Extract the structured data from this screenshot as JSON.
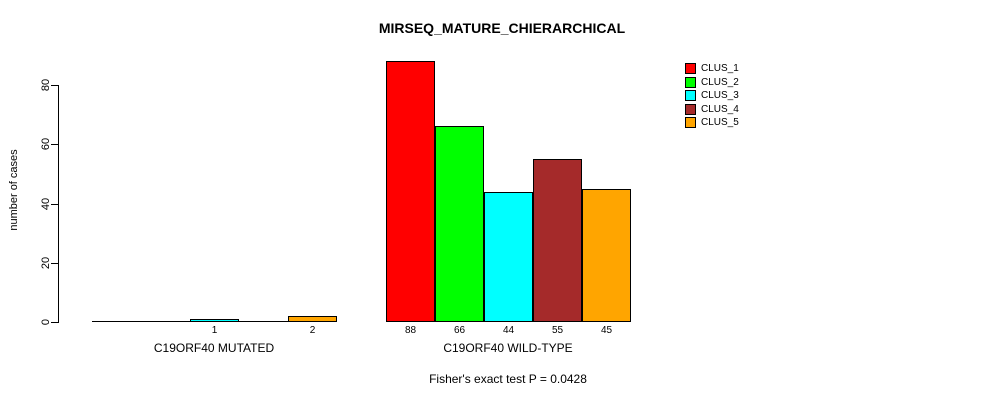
{
  "chart_data": {
    "type": "bar",
    "title": "MIRSEQ_MATURE_CHIERARCHICAL",
    "ylabel": "number of cases",
    "xlabel": "",
    "annotation": "Fisher's exact test P = 0.0428",
    "ylim": [
      0,
      88
    ],
    "yticks": [
      0,
      20,
      40,
      60,
      80
    ],
    "grid": false,
    "legend_position": "top-right",
    "legend": [
      {
        "label": "CLUS_1",
        "color": "#FF0000"
      },
      {
        "label": "CLUS_2",
        "color": "#00FF00"
      },
      {
        "label": "CLUS_3",
        "color": "#00FFFF"
      },
      {
        "label": "CLUS_4",
        "color": "#A52A2A"
      },
      {
        "label": "CLUS_5",
        "color": "#FFA500"
      }
    ],
    "groups": [
      {
        "label": "C19ORF40 MUTATED",
        "values": [
          0,
          0,
          1,
          0,
          2
        ],
        "bar_labels": [
          "",
          "",
          "1",
          "",
          "2"
        ]
      },
      {
        "label": "C19ORF40 WILD-TYPE",
        "values": [
          88,
          66,
          44,
          55,
          45
        ],
        "bar_labels": [
          "88",
          "66",
          "44",
          "55",
          "45"
        ]
      }
    ]
  }
}
